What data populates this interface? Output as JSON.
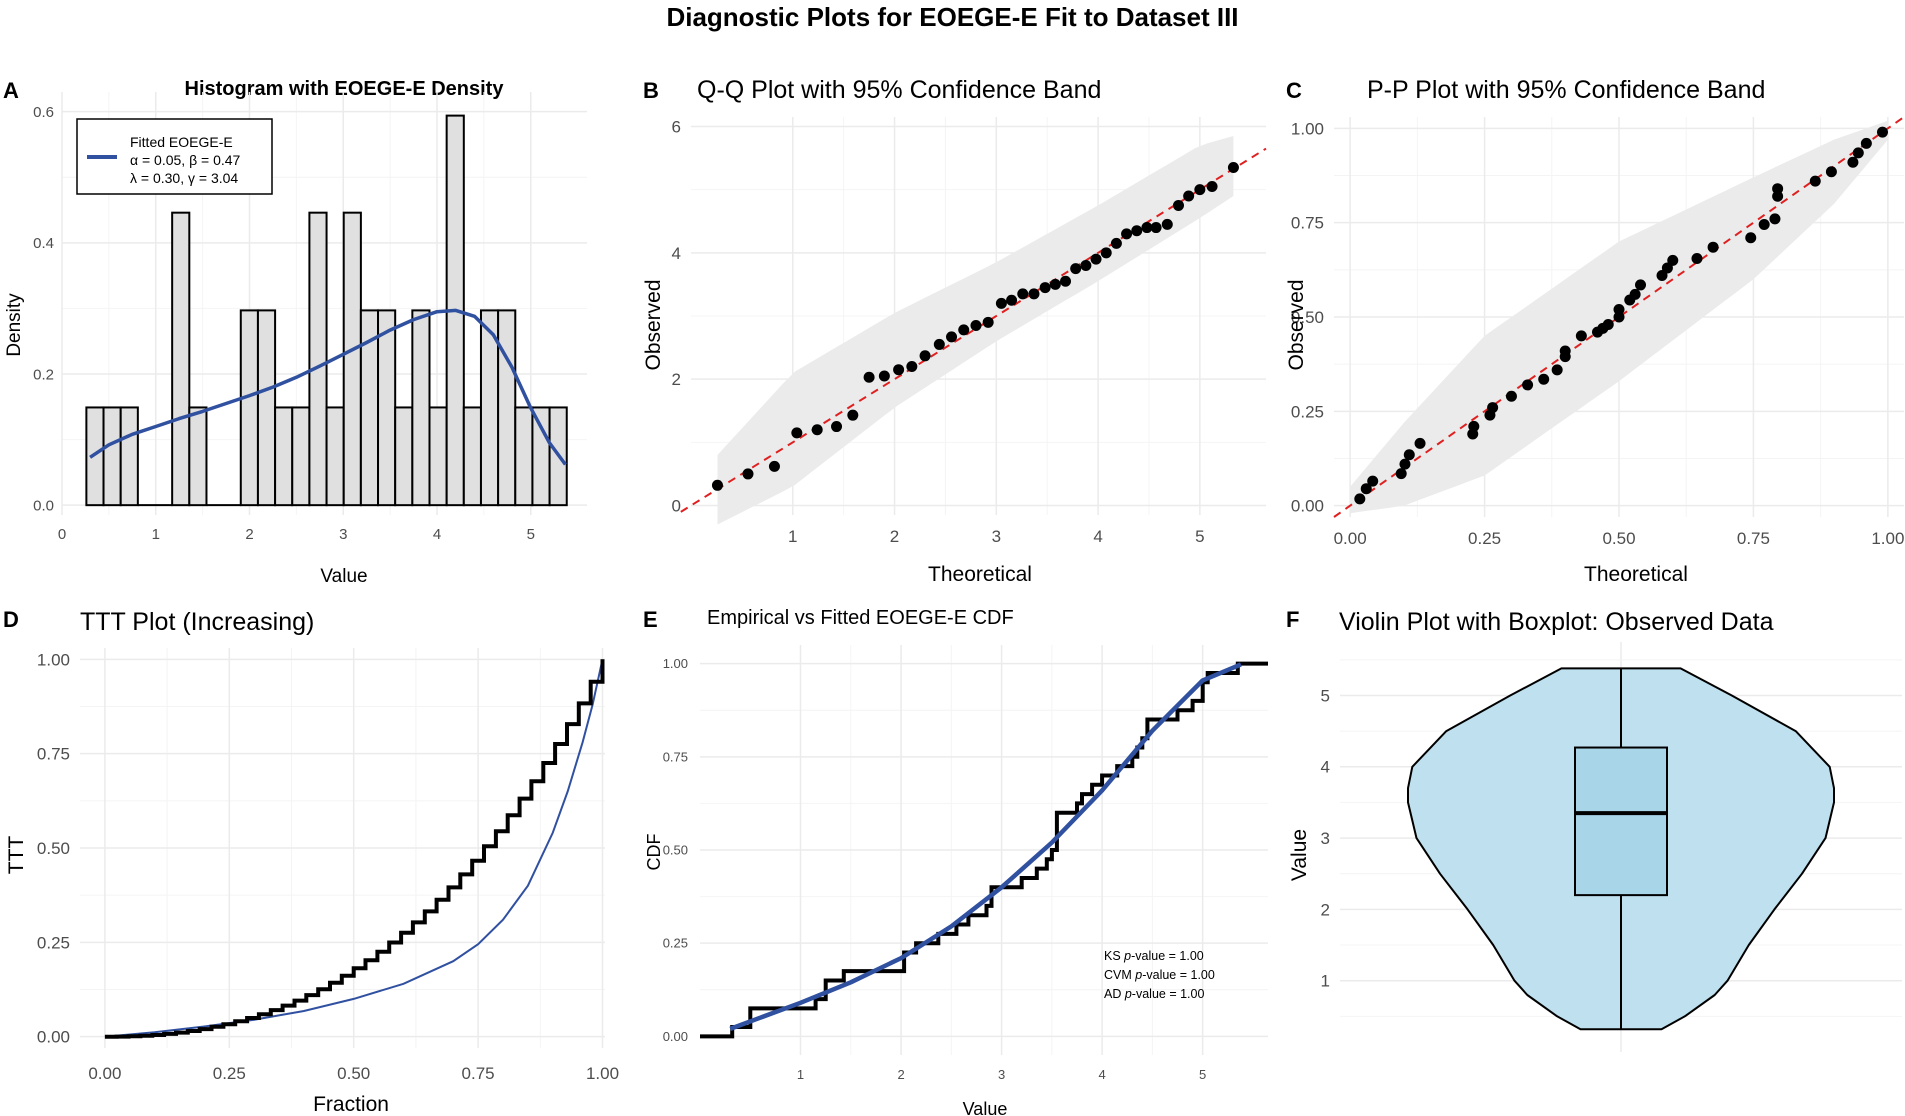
{
  "title": "Diagnostic Plots for EOEGE-E Fit to Dataset III",
  "colors": {
    "fit": "#3050A0",
    "band": "#EBEBEB",
    "ref": "#E02020",
    "bar": "#E0E0E0",
    "violin": "#BFE0EE",
    "box": "#A8D5E8",
    "grid": "#EBEBEB",
    "gridMinor": "#F4F4F4"
  },
  "chart_data": [
    {
      "type": "bar",
      "panel": "A",
      "title": "Histogram with EOEGE-E Density",
      "xlabel": "Value",
      "ylabel": "Density",
      "xlim": [
        0,
        5.6
      ],
      "ylim": [
        -0.015,
        0.63
      ],
      "xticks": [
        0,
        1,
        2,
        3,
        4,
        5
      ],
      "xtick_labels": [
        "0",
        "1",
        "2",
        "3",
        "4",
        "5"
      ],
      "yticks": [
        0,
        0.2,
        0.4,
        0.6
      ],
      "ytick_labels": [
        "0.0",
        "0.2",
        "0.4",
        "0.6"
      ],
      "binwidth": 0.183,
      "bins_start": [
        0.26,
        0.443,
        0.626,
        1.175,
        1.358,
        1.907,
        2.09,
        2.273,
        2.456,
        2.639,
        2.822,
        3.005,
        3.188,
        3.371,
        3.554,
        3.737,
        3.92,
        4.103,
        4.286,
        4.469,
        4.652,
        4.835,
        5.018,
        5.201
      ],
      "densities": [
        0.149,
        0.149,
        0.149,
        0.446,
        0.149,
        0.297,
        0.297,
        0.149,
        0.149,
        0.446,
        0.149,
        0.446,
        0.297,
        0.297,
        0.149,
        0.297,
        0.149,
        0.594,
        0.149,
        0.297,
        0.297,
        0.149,
        0.149,
        0.149
      ],
      "legend": {
        "title": "Fitted EOEGE-E",
        "line1": "α = 0.05, β = 0.47",
        "line2": "λ = 0.30, γ = 3.04"
      },
      "density_x": [
        0.3,
        0.5,
        0.75,
        1.0,
        1.25,
        1.5,
        1.75,
        2.0,
        2.25,
        2.5,
        2.75,
        3.0,
        3.25,
        3.5,
        3.75,
        4.0,
        4.2,
        4.4,
        4.6,
        4.8,
        5.0,
        5.2,
        5.37
      ],
      "density_y": [
        0.073,
        0.092,
        0.108,
        0.12,
        0.132,
        0.143,
        0.155,
        0.167,
        0.18,
        0.195,
        0.212,
        0.23,
        0.248,
        0.267,
        0.283,
        0.295,
        0.297,
        0.288,
        0.26,
        0.21,
        0.148,
        0.095,
        0.062
      ]
    },
    {
      "type": "scatter",
      "panel": "B",
      "title": "Q-Q Plot with 95% Confidence Band",
      "xlabel": "Theoretical",
      "ylabel": "Observed",
      "xlim": [
        0,
        5.65
      ],
      "ylim": [
        -0.15,
        6.15
      ],
      "xticks": [
        1,
        2,
        3,
        4,
        5
      ],
      "xtick_labels": [
        "1",
        "2",
        "3",
        "4",
        "5"
      ],
      "yticks": [
        0,
        2,
        4,
        6
      ],
      "ytick_labels": [
        "0",
        "2",
        "4",
        "6"
      ],
      "reference_line": [
        [
          -0.1,
          -0.1
        ],
        [
          5.65,
          5.65
        ]
      ],
      "band_x": [
        0.26,
        1,
        2,
        3,
        4,
        5,
        5.33
      ],
      "band_lower": [
        -0.3,
        0.3,
        1.55,
        2.6,
        3.55,
        4.55,
        4.9
      ],
      "band_upper": [
        0.8,
        2.1,
        3.05,
        3.85,
        4.75,
        5.7,
        5.85
      ],
      "points_x": [
        0.26,
        0.56,
        0.82,
        1.04,
        1.24,
        1.43,
        1.59,
        1.75,
        1.9,
        2.04,
        2.17,
        2.3,
        2.44,
        2.56,
        2.68,
        2.8,
        2.92,
        3.05,
        3.15,
        3.26,
        3.37,
        3.48,
        3.58,
        3.68,
        3.78,
        3.88,
        3.98,
        4.08,
        4.18,
        4.28,
        4.38,
        4.48,
        4.57,
        4.68,
        4.79,
        4.89,
        5.0,
        5.12,
        5.33
      ],
      "points_y": [
        0.32,
        0.5,
        0.62,
        1.15,
        1.2,
        1.25,
        1.43,
        2.03,
        2.05,
        2.15,
        2.2,
        2.37,
        2.55,
        2.67,
        2.78,
        2.85,
        2.9,
        3.2,
        3.25,
        3.35,
        3.35,
        3.45,
        3.5,
        3.55,
        3.75,
        3.8,
        3.9,
        4.0,
        4.15,
        4.3,
        4.35,
        4.4,
        4.4,
        4.45,
        4.75,
        4.9,
        5.0,
        5.05,
        5.35
      ]
    },
    {
      "type": "scatter",
      "panel": "C",
      "title": "P-P Plot with 95% Confidence Band",
      "xlabel": "Theoretical",
      "ylabel": "Observed",
      "xlim": [
        -0.03,
        1.03
      ],
      "ylim": [
        -0.03,
        1.03
      ],
      "xticks": [
        0,
        0.25,
        0.5,
        0.75,
        1
      ],
      "xtick_labels": [
        "0.00",
        "0.25",
        "0.50",
        "0.75",
        "1.00"
      ],
      "yticks": [
        0,
        0.25,
        0.5,
        0.75,
        1
      ],
      "ytick_labels": [
        "0.00",
        "0.25",
        "0.50",
        "0.75",
        "1.00"
      ],
      "reference_line": [
        [
          -0.03,
          -0.03
        ],
        [
          1.03,
          1.03
        ]
      ],
      "band_x": [
        0.0,
        0.1,
        0.25,
        0.5,
        0.75,
        0.9,
        1.0
      ],
      "band_lower": [
        -0.02,
        0.0,
        0.08,
        0.33,
        0.6,
        0.8,
        0.97
      ],
      "band_upper": [
        0.05,
        0.22,
        0.45,
        0.7,
        0.87,
        0.97,
        1.02
      ],
      "points_x": [
        0.018,
        0.03,
        0.042,
        0.095,
        0.102,
        0.11,
        0.13,
        0.228,
        0.23,
        0.26,
        0.265,
        0.3,
        0.33,
        0.36,
        0.385,
        0.4,
        0.4,
        0.43,
        0.46,
        0.47,
        0.48,
        0.5,
        0.5,
        0.52,
        0.53,
        0.54,
        0.58,
        0.59,
        0.6,
        0.645,
        0.675,
        0.745,
        0.77,
        0.79,
        0.795,
        0.795,
        0.865,
        0.895,
        0.935,
        0.945,
        0.96,
        0.99
      ],
      "points_y": [
        0.018,
        0.045,
        0.065,
        0.085,
        0.11,
        0.135,
        0.165,
        0.19,
        0.21,
        0.24,
        0.26,
        0.29,
        0.32,
        0.335,
        0.36,
        0.395,
        0.41,
        0.45,
        0.46,
        0.47,
        0.48,
        0.5,
        0.52,
        0.545,
        0.56,
        0.585,
        0.61,
        0.63,
        0.65,
        0.655,
        0.685,
        0.71,
        0.745,
        0.76,
        0.82,
        0.84,
        0.86,
        0.885,
        0.91,
        0.935,
        0.96,
        0.99
      ]
    },
    {
      "type": "line",
      "panel": "D",
      "title": "TTT Plot (Increasing)",
      "xlabel": "Fraction",
      "ylabel": "TTT",
      "xlim": [
        -0.05,
        1.005
      ],
      "ylim": [
        -0.03,
        1.03
      ],
      "xticks": [
        0,
        0.25,
        0.5,
        0.75,
        1
      ],
      "xtick_labels": [
        "0.00",
        "0.25",
        "0.50",
        "0.75",
        "1.00"
      ],
      "yticks": [
        0,
        0.25,
        0.5,
        0.75,
        1
      ],
      "ytick_labels": [
        "0.00",
        "0.25",
        "0.50",
        "0.75",
        "1.00"
      ],
      "ttt_steps": 42,
      "fitted_x": [
        0,
        0.1,
        0.2,
        0.3,
        0.4,
        0.5,
        0.6,
        0.7,
        0.75,
        0.8,
        0.85,
        0.9,
        0.93,
        0.96,
        0.98,
        1.0
      ],
      "fitted_y": [
        0,
        0.012,
        0.027,
        0.045,
        0.068,
        0.1,
        0.14,
        0.2,
        0.245,
        0.31,
        0.4,
        0.54,
        0.65,
        0.78,
        0.88,
        1.0
      ]
    },
    {
      "type": "line",
      "panel": "E",
      "title": "Empirical vs Fitted EOEGE-E CDF",
      "xlabel": "Value",
      "ylabel": "CDF",
      "xlim": [
        0,
        5.65
      ],
      "ylim": [
        -0.05,
        1.05
      ],
      "xticks": [
        1,
        2,
        3,
        4,
        5
      ],
      "xtick_labels": [
        "1",
        "2",
        "3",
        "4",
        "5"
      ],
      "yticks": [
        0,
        0.25,
        0.5,
        0.75,
        1
      ],
      "ytick_labels": [
        "0.00",
        "0.25",
        "0.50",
        "0.75",
        "1.00"
      ],
      "empirical_x": [
        0.32,
        0.5,
        1.15,
        1.25,
        1.43,
        2.03,
        2.15,
        2.37,
        2.55,
        2.67,
        2.85,
        2.9,
        3.2,
        3.35,
        3.45,
        3.5,
        3.55,
        3.75,
        3.8,
        3.9,
        4.0,
        4.15,
        4.3,
        4.35,
        4.4,
        4.45,
        4.75,
        4.9,
        5.0,
        5.05,
        5.35
      ],
      "empirical_y": [
        0.025,
        0.075,
        0.1,
        0.15,
        0.175,
        0.225,
        0.25,
        0.275,
        0.3,
        0.325,
        0.35,
        0.4,
        0.425,
        0.45,
        0.475,
        0.5,
        0.6,
        0.625,
        0.65,
        0.675,
        0.7,
        0.725,
        0.75,
        0.775,
        0.8,
        0.85,
        0.875,
        0.9,
        0.95,
        0.975,
        1.0
      ],
      "fitted_x": [
        0.3,
        0.6,
        1.0,
        1.5,
        2.0,
        2.5,
        3.0,
        3.5,
        4.0,
        4.5,
        5.0,
        5.38
      ],
      "fitted_y": [
        0.02,
        0.05,
        0.09,
        0.145,
        0.21,
        0.295,
        0.4,
        0.52,
        0.66,
        0.82,
        0.955,
        0.998
      ],
      "annotations": [
        {
          "pre": "KS ",
          "it": "p",
          "post": "-value = 1.00"
        },
        {
          "pre": "CVM ",
          "it": "p",
          "post": "-value = 1.00"
        },
        {
          "pre": "AD ",
          "it": "p",
          "post": "-value = 1.00"
        }
      ]
    },
    {
      "type": "violin",
      "panel": "F",
      "title": "Violin Plot with Boxplot: Observed Data",
      "xlabel": "",
      "ylabel": "Value",
      "ylim": [
        0.0,
        5.75
      ],
      "yticks": [
        1,
        2,
        3,
        4,
        5
      ],
      "ytick_labels": [
        "1",
        "2",
        "3",
        "4",
        "5"
      ],
      "violin_y": [
        0.32,
        0.5,
        0.8,
        1.0,
        1.5,
        2.0,
        2.5,
        3.0,
        3.5,
        3.7,
        4.0,
        4.5,
        5.0,
        5.38
      ],
      "violin_halfwidth": [
        0.19,
        0.3,
        0.44,
        0.5,
        0.6,
        0.72,
        0.85,
        0.96,
        1.0,
        1.0,
        0.98,
        0.82,
        0.52,
        0.28
      ],
      "box": {
        "min": 0.32,
        "q1": 2.2,
        "median": 3.35,
        "q3": 4.27,
        "max": 5.38
      }
    }
  ]
}
